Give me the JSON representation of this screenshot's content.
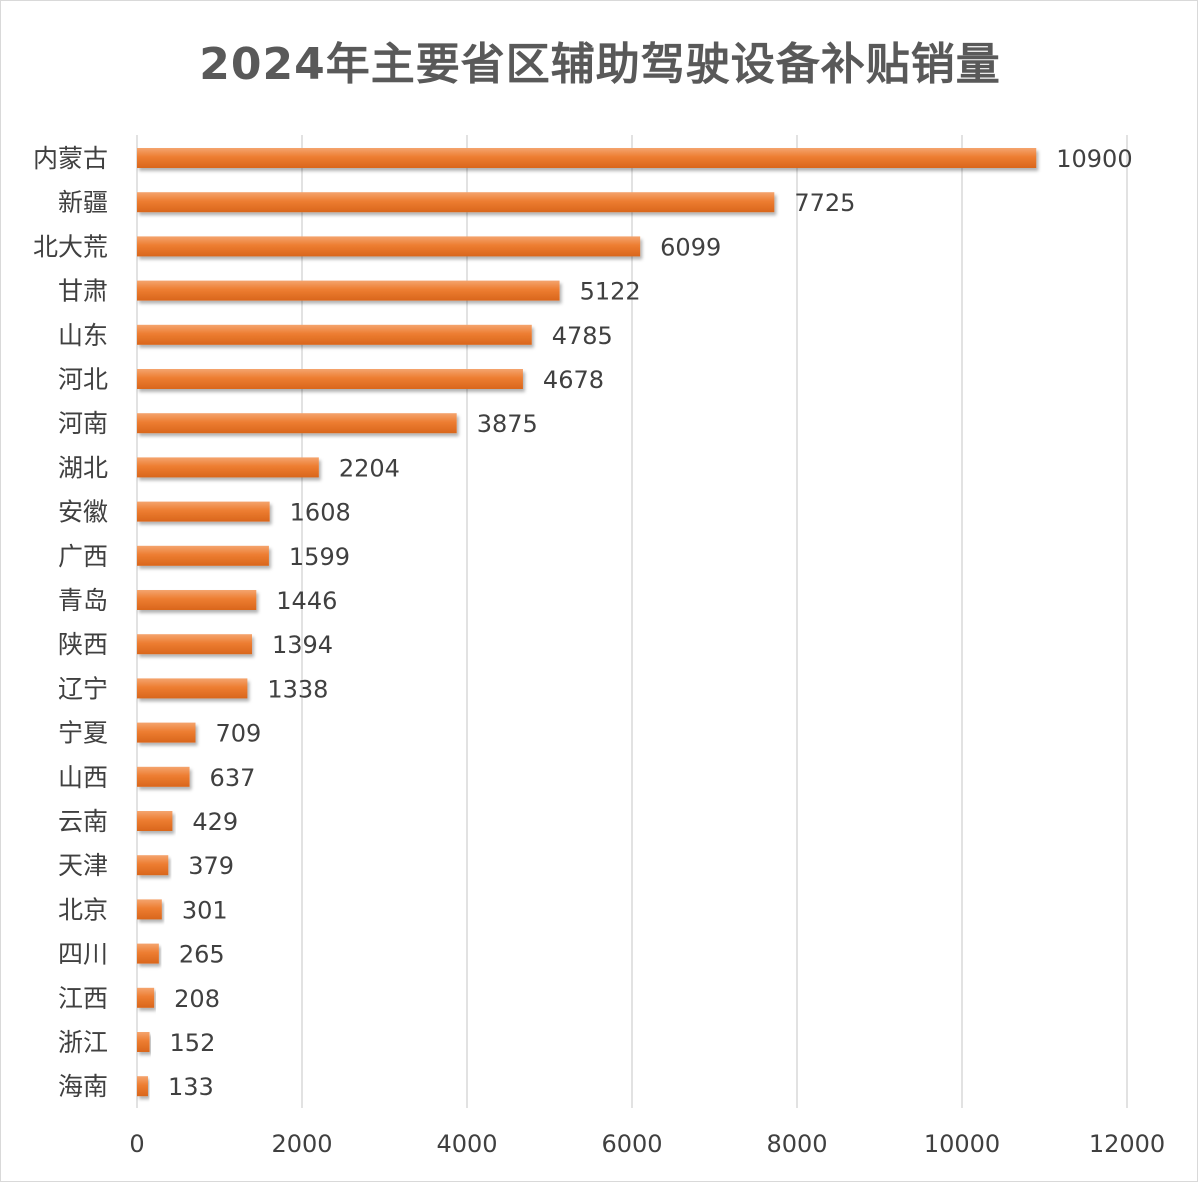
{
  "chart_data": {
    "type": "bar",
    "orientation": "horizontal",
    "title": "2024年主要省区辅助驾驶设备补贴销量",
    "categories": [
      "内蒙古",
      "新疆",
      "北大荒",
      "甘肃",
      "山东",
      "河北",
      "河南",
      "湖北",
      "安徽",
      "广西",
      "青岛",
      "陕西",
      "辽宁",
      "宁夏",
      "山西",
      "云南",
      "天津",
      "北京",
      "四川",
      "江西",
      "浙江",
      "海南"
    ],
    "values": [
      10900,
      7725,
      6099,
      5122,
      4785,
      4678,
      3875,
      2204,
      1608,
      1599,
      1446,
      1394,
      1338,
      709,
      637,
      429,
      379,
      301,
      265,
      208,
      152,
      133
    ],
    "xlim": [
      0,
      12000
    ],
    "xticks": [
      "0",
      "2000",
      "4000",
      "6000",
      "8000",
      "10000",
      "12000"
    ],
    "bar_color": "#ed7d31",
    "grid": true,
    "legend": "none"
  }
}
